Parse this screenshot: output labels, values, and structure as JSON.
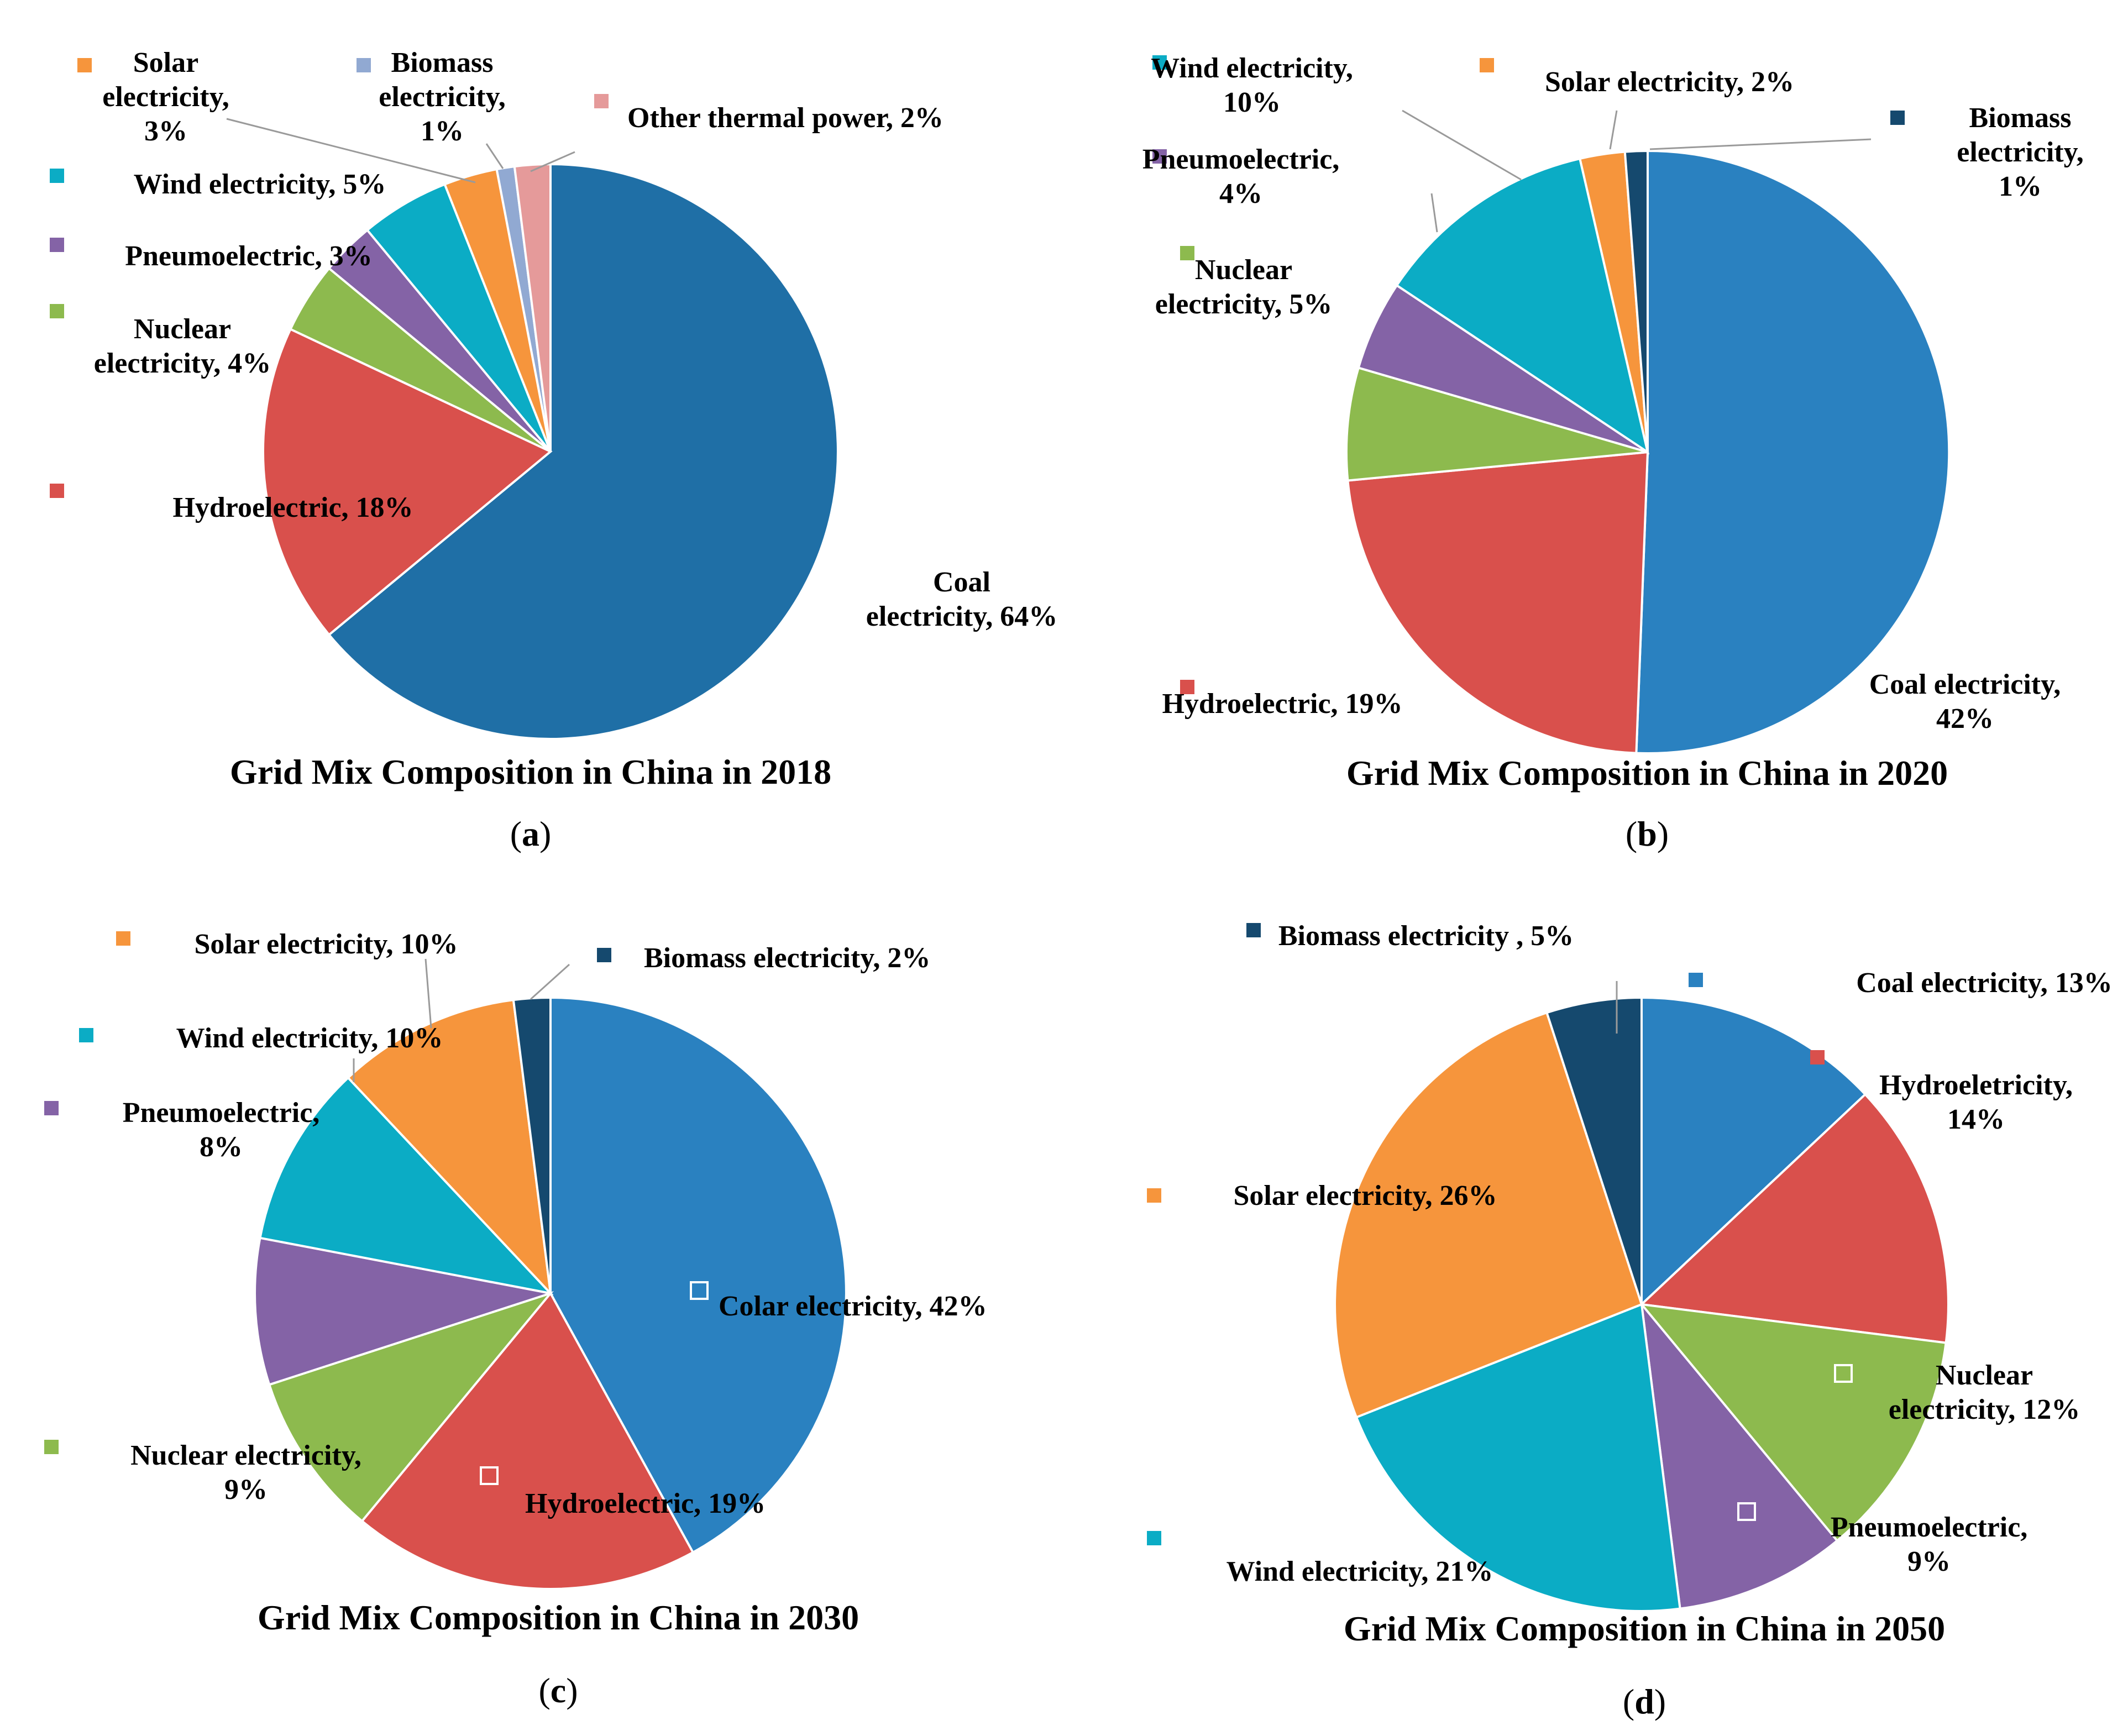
{
  "colors": {
    "coal_dark": "#1F6FA6",
    "coal": "#2A81C0",
    "hydro": "#D9504C",
    "nuclear": "#8DBA4E",
    "pneumo": "#8463A6",
    "wind": "#0BACC5",
    "solar": "#F6953C",
    "biomass_light": "#91A9D2",
    "biomass": "#15496E",
    "other_thermal": "#E59A9A"
  },
  "chart_data": [
    {
      "id": "a",
      "type": "pie",
      "title": "Grid Mix Composition in China in 2018",
      "caption": {
        "open": "(",
        "letter": "a",
        "close": ")"
      },
      "slices": [
        {
          "name": "Coal electricity",
          "value": 64,
          "color_key": "coal_dark",
          "label_lines": [
            "Coal",
            "electricity, 64%"
          ]
        },
        {
          "name": "Hydroelectric",
          "value": 18,
          "color_key": "hydro",
          "label_lines": [
            "Hydroelectric, 18%"
          ]
        },
        {
          "name": "Nuclear electricity",
          "value": 4,
          "color_key": "nuclear",
          "label_lines": [
            "Nuclear",
            "electricity, 4%"
          ]
        },
        {
          "name": "Pneumoelectric",
          "value": 3,
          "color_key": "pneumo",
          "label_lines": [
            "Pneumoelectric, 3%"
          ]
        },
        {
          "name": "Wind electricity",
          "value": 5,
          "color_key": "wind",
          "label_lines": [
            "Wind electricity, 5%"
          ]
        },
        {
          "name": "Solar electricity",
          "value": 3,
          "color_key": "solar",
          "label_lines": [
            "Solar",
            "electricity,",
            "3%"
          ]
        },
        {
          "name": "Biomass electricity",
          "value": 1,
          "color_key": "biomass_light",
          "label_lines": [
            "Biomass",
            "electricity,",
            "1%"
          ]
        },
        {
          "name": "Other thermal power",
          "value": 2,
          "color_key": "other_thermal",
          "label_lines": [
            "Other thermal power, 2%"
          ]
        }
      ]
    },
    {
      "id": "b",
      "type": "pie",
      "title": "Grid Mix Composition in China in 2020",
      "caption": {
        "open": "(",
        "letter": "b",
        "close": ")"
      },
      "slices": [
        {
          "name": "Coal electricity",
          "value": 42,
          "color_key": "coal",
          "label_lines": [
            "Coal  electricity,",
            "42%"
          ]
        },
        {
          "name": "Hydroelectric",
          "value": 19,
          "color_key": "hydro",
          "label_lines": [
            "Hydroelectric, 19%"
          ]
        },
        {
          "name": "Nuclear electricity",
          "value": 5,
          "color_key": "nuclear",
          "label_lines": [
            "Nuclear",
            "electricity, 5%"
          ]
        },
        {
          "name": "Pneumoelectric",
          "value": 4,
          "color_key": "pneumo",
          "label_lines": [
            "Pneumoelectric,",
            "4%"
          ]
        },
        {
          "name": "Wind electricity",
          "value": 10,
          "color_key": "wind",
          "label_lines": [
            "Wind electricity,",
            "10%"
          ]
        },
        {
          "name": "Solar electricity",
          "value": 2,
          "color_key": "solar",
          "label_lines": [
            "Solar electricity, 2%"
          ]
        },
        {
          "name": "Biomass electricity",
          "value": 1,
          "color_key": "biomass",
          "label_lines": [
            "Biomass",
            "electricity,",
            "1%"
          ]
        }
      ]
    },
    {
      "id": "c",
      "type": "pie",
      "title": "Grid Mix Composition in China in 2030",
      "caption": {
        "open": "(",
        "letter": "c",
        "close": ")"
      },
      "slices": [
        {
          "name": "Colar electricity",
          "value": 42,
          "color_key": "coal",
          "label_lines": [
            "Colar electricity, 42%"
          ]
        },
        {
          "name": "Hydroelectric",
          "value": 19,
          "color_key": "hydro",
          "label_lines": [
            "Hydroelectric, 19%"
          ]
        },
        {
          "name": "Nuclear electricity",
          "value": 9,
          "color_key": "nuclear",
          "label_lines": [
            "Nuclear electricity,",
            "9%"
          ]
        },
        {
          "name": "Pneumoelectric",
          "value": 8,
          "color_key": "pneumo",
          "label_lines": [
            "Pneumoelectric,",
            "8%"
          ]
        },
        {
          "name": "Wind electricity",
          "value": 10,
          "color_key": "wind",
          "label_lines": [
            "Wind  electricity, 10%"
          ]
        },
        {
          "name": "Solar electricity",
          "value": 10,
          "color_key": "solar",
          "label_lines": [
            "Solar electricity, 10%"
          ]
        },
        {
          "name": "Biomass electricity",
          "value": 2,
          "color_key": "biomass",
          "label_lines": [
            "Biomass electricity, 2%"
          ]
        }
      ]
    },
    {
      "id": "d",
      "type": "pie",
      "title": "Grid Mix Composition in China in 2050",
      "caption": {
        "open": "(",
        "letter": "d",
        "close": ")"
      },
      "slices": [
        {
          "name": "Coal electricity",
          "value": 13,
          "color_key": "coal",
          "label_lines": [
            "Coal  electricity, 13%"
          ]
        },
        {
          "name": "Hydroeletricity",
          "value": 14,
          "color_key": "hydro",
          "label_lines": [
            "Hydroeletricity,",
            "14%"
          ]
        },
        {
          "name": "Nuclear electricity",
          "value": 12,
          "color_key": "nuclear",
          "label_lines": [
            "Nuclear",
            "electricity, 12%"
          ]
        },
        {
          "name": "Pneumoelectric",
          "value": 9,
          "color_key": "pneumo",
          "label_lines": [
            "Pneumoelectric,",
            "9%"
          ]
        },
        {
          "name": "Wind electricity",
          "value": 21,
          "color_key": "wind",
          "label_lines": [
            "Wind electricity, 21%"
          ]
        },
        {
          "name": "Solar electricity",
          "value": 26,
          "color_key": "solar",
          "label_lines": [
            "Solar electricity, 26%"
          ]
        },
        {
          "name": "Biomass electricity",
          "value": 5,
          "color_key": "biomass",
          "label_lines": [
            "Biomass electricity , 5%"
          ]
        }
      ]
    }
  ]
}
